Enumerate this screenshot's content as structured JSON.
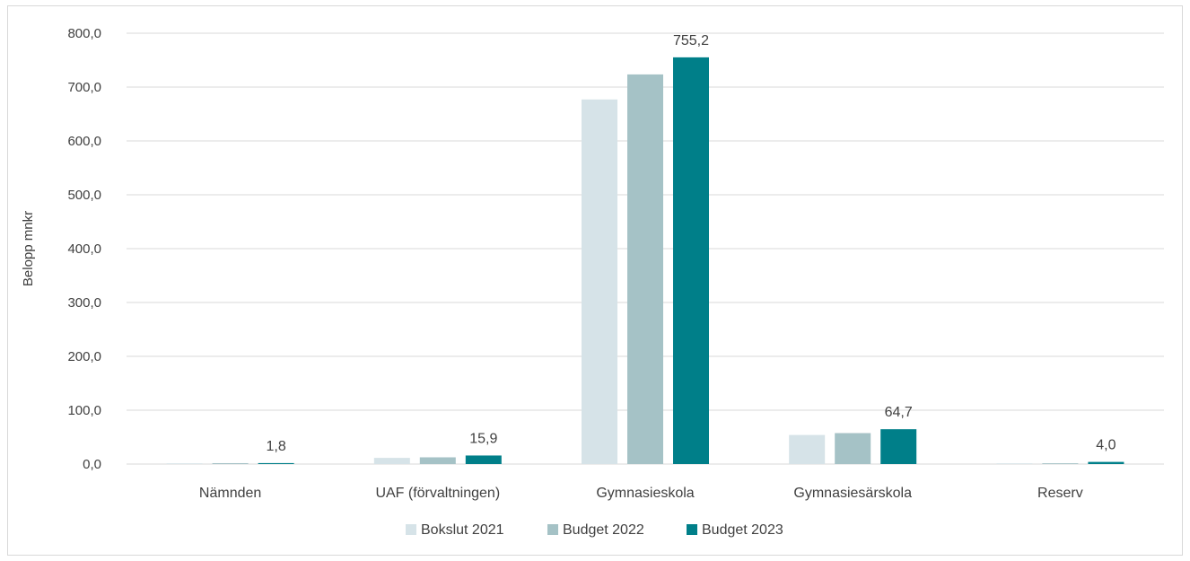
{
  "chart_data": {
    "type": "bar",
    "title": "",
    "xlabel": "",
    "ylabel": "Belopp mnkr",
    "ylim": [
      0,
      800
    ],
    "y_ticks": [
      "0,0",
      "100,0",
      "200,0",
      "300,0",
      "400,0",
      "500,0",
      "600,0",
      "700,0",
      "800,0"
    ],
    "y_tick_values": [
      0,
      100,
      200,
      300,
      400,
      500,
      600,
      700,
      800
    ],
    "grid": true,
    "legend_position": "bottom",
    "categories": [
      "Nämnden",
      "UAF (förvaltningen)",
      "Gymnasieskola",
      "Gymnasiesärskola",
      "Reserv"
    ],
    "series": [
      {
        "name": "Bokslut 2021",
        "color": "#d6e3e8",
        "values": [
          1.2,
          11.5,
          677.0,
          54.0,
          0.0
        ]
      },
      {
        "name": "Budget 2022",
        "color": "#a5c2c6",
        "values": [
          1.7,
          12.5,
          723.5,
          57.5,
          1.5
        ]
      },
      {
        "name": "Budget 2023",
        "color": "#007f89",
        "values": [
          1.8,
          15.9,
          755.2,
          64.7,
          4.0
        ]
      }
    ],
    "data_labels": [
      {
        "category_index": 0,
        "series_index": 2,
        "text": "1,8"
      },
      {
        "category_index": 1,
        "series_index": 2,
        "text": "15,9"
      },
      {
        "category_index": 2,
        "series_index": 2,
        "text": "755,2"
      },
      {
        "category_index": 3,
        "series_index": 2,
        "text": "64,7"
      },
      {
        "category_index": 4,
        "series_index": 2,
        "text": "4,0"
      }
    ]
  }
}
